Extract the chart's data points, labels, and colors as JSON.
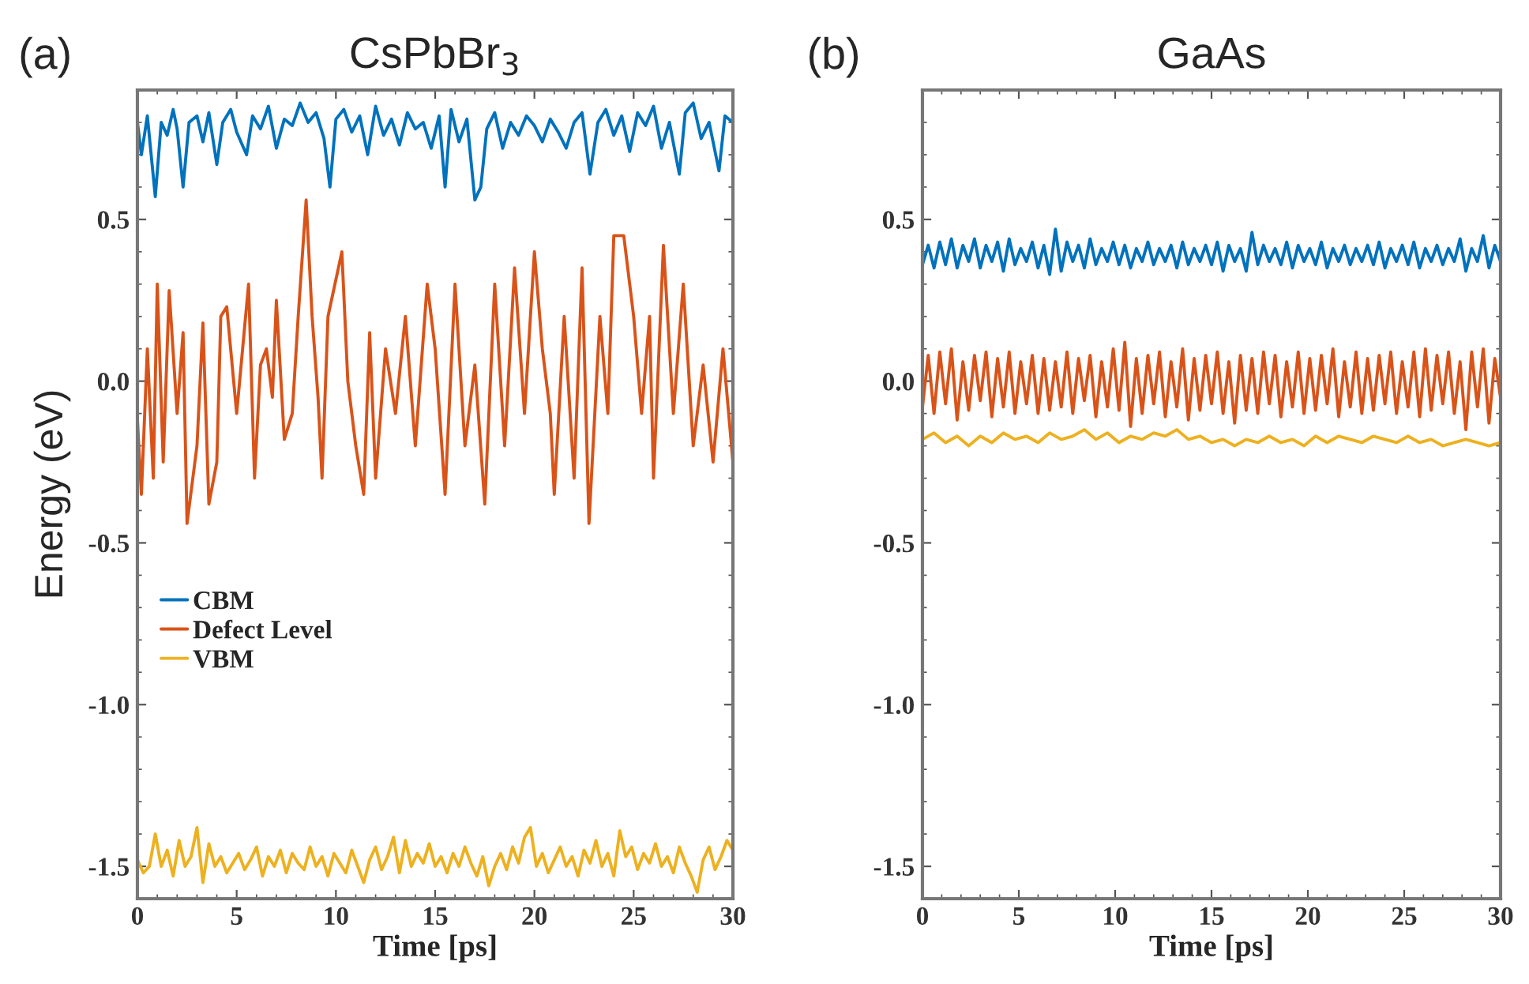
{
  "chart_data": [
    {
      "type": "line",
      "title": "CsPbBr$_{3}$",
      "xlabel": "Time [ps]",
      "ylabel": "Energy (eV)",
      "annotations": [
        "(a)"
      ],
      "xlim": [
        0,
        30
      ],
      "ylim": [
        -1.6,
        0.9
      ],
      "xticks": [
        0,
        5,
        10,
        15,
        20,
        25,
        30
      ],
      "yticks": [
        {
          "value": 0.5,
          "label": "0.5"
        },
        {
          "value": 0.0,
          "label": "0.0"
        },
        {
          "value": -0.5,
          "label": "-0.5"
        },
        {
          "value": -1.0,
          "label": "-1.0"
        },
        {
          "value": -1.5,
          "label": "-1.5"
        }
      ],
      "grid": false,
      "legend": "center left",
      "marker": "none",
      "line_style": "solid",
      "series": [
        {
          "name": "CBM",
          "color": "#0072bd",
          "x": [
            0,
            0.2,
            0.5,
            0.9,
            1.2,
            1.5,
            1.8,
            2.0,
            2.3,
            2.6,
            3.0,
            3.3,
            3.6,
            4.0,
            4.3,
            4.7,
            5.0,
            5.5,
            5.8,
            6.2,
            6.6,
            7.0,
            7.4,
            7.8,
            8.2,
            8.6,
            9.0,
            9.4,
            9.7,
            10.0,
            10.4,
            10.8,
            11.2,
            11.6,
            12.0,
            12.4,
            12.8,
            13.2,
            13.6,
            14.0,
            14.4,
            14.8,
            15.2,
            15.5,
            15.8,
            16.2,
            16.6,
            17.0,
            17.3,
            17.6,
            18.0,
            18.4,
            18.8,
            19.2,
            19.6,
            20.0,
            20.4,
            20.8,
            21.2,
            21.6,
            22.0,
            22.4,
            22.8,
            23.2,
            23.6,
            24.0,
            24.4,
            24.8,
            25.2,
            25.6,
            26.0,
            26.4,
            26.8,
            27.3,
            27.6,
            28.0,
            28.4,
            28.8,
            29.3,
            29.6,
            30.0
          ],
          "values": [
            0.8,
            0.7,
            0.82,
            0.57,
            0.8,
            0.76,
            0.84,
            0.78,
            0.6,
            0.8,
            0.82,
            0.74,
            0.83,
            0.67,
            0.8,
            0.84,
            0.77,
            0.7,
            0.82,
            0.78,
            0.85,
            0.72,
            0.81,
            0.79,
            0.86,
            0.8,
            0.83,
            0.75,
            0.6,
            0.81,
            0.84,
            0.77,
            0.82,
            0.7,
            0.85,
            0.76,
            0.81,
            0.73,
            0.83,
            0.78,
            0.8,
            0.72,
            0.82,
            0.6,
            0.84,
            0.74,
            0.81,
            0.56,
            0.6,
            0.78,
            0.83,
            0.72,
            0.8,
            0.76,
            0.82,
            0.79,
            0.74,
            0.81,
            0.77,
            0.72,
            0.8,
            0.83,
            0.64,
            0.8,
            0.84,
            0.76,
            0.82,
            0.71,
            0.83,
            0.79,
            0.85,
            0.72,
            0.8,
            0.64,
            0.83,
            0.86,
            0.75,
            0.8,
            0.65,
            0.82,
            0.8
          ]
        },
        {
          "name": "Defect Level",
          "color": "#d95319",
          "x": [
            0,
            0.2,
            0.5,
            0.8,
            1.0,
            1.3,
            1.6,
            2.0,
            2.3,
            2.5,
            3.0,
            3.3,
            3.6,
            4.0,
            4.2,
            4.5,
            5.0,
            5.6,
            5.9,
            6.2,
            6.5,
            6.8,
            7.0,
            7.4,
            7.8,
            8.1,
            8.5,
            8.8,
            9.1,
            9.3,
            9.6,
            10.3,
            10.6,
            11.0,
            11.4,
            11.7,
            12.0,
            12.5,
            13.0,
            13.5,
            14.0,
            14.6,
            15.0,
            15.5,
            16.0,
            16.5,
            17.0,
            17.5,
            18.0,
            18.5,
            19.0,
            19.5,
            20.0,
            20.4,
            20.8,
            21.0,
            21.5,
            22.0,
            22.4,
            22.75,
            23.3,
            23.7,
            24.0,
            24.5,
            25.0,
            25.4,
            25.8,
            26.0,
            26.5,
            27.0,
            27.5,
            28.0,
            28.5,
            29.0,
            29.5,
            30.0
          ],
          "values": [
            -0.12,
            -0.35,
            0.1,
            -0.3,
            0.3,
            -0.25,
            0.28,
            -0.1,
            0.15,
            -0.44,
            -0.2,
            0.18,
            -0.38,
            -0.25,
            0.2,
            0.23,
            -0.1,
            0.3,
            -0.3,
            0.05,
            0.1,
            -0.05,
            0.25,
            -0.18,
            -0.1,
            0.2,
            0.56,
            0.2,
            -0.05,
            -0.3,
            0.2,
            0.4,
            0.0,
            -0.2,
            -0.35,
            0.15,
            -0.3,
            0.1,
            -0.1,
            0.2,
            -0.2,
            0.3,
            0.1,
            -0.35,
            0.3,
            -0.2,
            0.05,
            -0.38,
            0.3,
            -0.2,
            0.35,
            -0.1,
            0.4,
            0.1,
            -0.1,
            -0.35,
            0.2,
            -0.3,
            0.35,
            -0.44,
            0.2,
            -0.1,
            0.45,
            0.45,
            0.2,
            -0.1,
            0.2,
            -0.3,
            0.42,
            -0.1,
            0.3,
            -0.2,
            0.05,
            -0.25,
            0.1,
            -0.25
          ]
        },
        {
          "name": "VBM",
          "color": "#edb120",
          "x": [
            0,
            0.3,
            0.6,
            0.9,
            1.2,
            1.5,
            1.8,
            2.1,
            2.4,
            2.7,
            3.0,
            3.3,
            3.6,
            3.9,
            4.2,
            4.5,
            4.8,
            5.1,
            5.4,
            5.7,
            6.0,
            6.3,
            6.6,
            6.9,
            7.2,
            7.5,
            7.8,
            8.1,
            8.4,
            8.7,
            9.0,
            9.3,
            9.6,
            9.9,
            10.2,
            10.5,
            10.8,
            11.1,
            11.4,
            11.7,
            12.0,
            12.3,
            12.6,
            12.9,
            13.2,
            13.5,
            13.8,
            14.1,
            14.4,
            14.7,
            15.0,
            15.3,
            15.6,
            15.9,
            16.2,
            16.5,
            16.8,
            17.1,
            17.4,
            17.7,
            18.0,
            18.3,
            18.6,
            18.9,
            19.2,
            19.5,
            19.8,
            20.1,
            20.4,
            20.7,
            21.0,
            21.3,
            21.6,
            21.9,
            22.2,
            22.5,
            22.8,
            23.1,
            23.4,
            23.7,
            24.0,
            24.3,
            24.6,
            24.9,
            25.2,
            25.5,
            25.8,
            26.1,
            26.4,
            26.7,
            27.0,
            27.3,
            27.6,
            27.9,
            28.2,
            28.5,
            28.8,
            29.1,
            29.4,
            29.7,
            30.0
          ],
          "values": [
            -1.48,
            -1.52,
            -1.5,
            -1.4,
            -1.5,
            -1.45,
            -1.53,
            -1.42,
            -1.5,
            -1.47,
            -1.38,
            -1.55,
            -1.43,
            -1.5,
            -1.47,
            -1.52,
            -1.49,
            -1.46,
            -1.51,
            -1.48,
            -1.44,
            -1.53,
            -1.47,
            -1.5,
            -1.45,
            -1.52,
            -1.46,
            -1.49,
            -1.51,
            -1.44,
            -1.5,
            -1.47,
            -1.53,
            -1.46,
            -1.49,
            -1.52,
            -1.45,
            -1.5,
            -1.55,
            -1.48,
            -1.44,
            -1.51,
            -1.47,
            -1.41,
            -1.52,
            -1.42,
            -1.5,
            -1.46,
            -1.49,
            -1.43,
            -1.5,
            -1.47,
            -1.52,
            -1.46,
            -1.5,
            -1.44,
            -1.49,
            -1.53,
            -1.47,
            -1.56,
            -1.5,
            -1.46,
            -1.51,
            -1.44,
            -1.49,
            -1.41,
            -1.38,
            -1.5,
            -1.46,
            -1.52,
            -1.48,
            -1.44,
            -1.5,
            -1.47,
            -1.53,
            -1.45,
            -1.49,
            -1.42,
            -1.5,
            -1.46,
            -1.53,
            -1.39,
            -1.47,
            -1.44,
            -1.51,
            -1.46,
            -1.49,
            -1.43,
            -1.5,
            -1.47,
            -1.52,
            -1.44,
            -1.49,
            -1.53,
            -1.58,
            -1.48,
            -1.44,
            -1.51,
            -1.47,
            -1.42,
            -1.45
          ]
        }
      ]
    },
    {
      "type": "line",
      "title": "GaAs",
      "xlabel": "Time [ps]",
      "annotations": [
        "(b)"
      ],
      "xlim": [
        0,
        30
      ],
      "ylim": [
        -1.6,
        0.9
      ],
      "xticks": [
        0,
        5,
        10,
        15,
        20,
        25,
        30
      ],
      "yticks": [
        {
          "value": 0.5,
          "label": "0.5"
        },
        {
          "value": 0.0,
          "label": "0.0"
        },
        {
          "value": -0.5,
          "label": "-0.5"
        },
        {
          "value": -1.0,
          "label": "-1.0"
        },
        {
          "value": -1.5,
          "label": "-1.5"
        }
      ],
      "grid": false,
      "marker": "none",
      "line_style": "solid",
      "series": [
        {
          "color": "#0072bd",
          "x": [
            0,
            0.3,
            0.6,
            0.9,
            1.2,
            1.5,
            1.8,
            2.1,
            2.4,
            2.7,
            3.0,
            3.3,
            3.6,
            3.9,
            4.2,
            4.5,
            4.8,
            5.1,
            5.4,
            5.7,
            6.0,
            6.3,
            6.6,
            6.9,
            7.2,
            7.5,
            7.8,
            8.1,
            8.4,
            8.7,
            9.0,
            9.3,
            9.6,
            9.9,
            10.2,
            10.5,
            10.8,
            11.1,
            11.4,
            11.7,
            12.0,
            12.3,
            12.6,
            12.9,
            13.2,
            13.5,
            13.8,
            14.1,
            14.4,
            14.7,
            15.0,
            15.3,
            15.6,
            15.9,
            16.2,
            16.5,
            16.8,
            17.1,
            17.4,
            17.7,
            18.0,
            18.3,
            18.6,
            18.9,
            19.2,
            19.5,
            19.8,
            20.1,
            20.4,
            20.7,
            21.0,
            21.3,
            21.6,
            21.9,
            22.2,
            22.5,
            22.8,
            23.1,
            23.4,
            23.7,
            24.0,
            24.3,
            24.6,
            24.9,
            25.2,
            25.5,
            25.8,
            26.1,
            26.4,
            26.7,
            27.0,
            27.3,
            27.6,
            27.9,
            28.2,
            28.5,
            28.8,
            29.1,
            29.4,
            29.7,
            30.0
          ],
          "values": [
            0.36,
            0.42,
            0.35,
            0.43,
            0.36,
            0.44,
            0.35,
            0.42,
            0.37,
            0.44,
            0.35,
            0.42,
            0.37,
            0.43,
            0.34,
            0.44,
            0.36,
            0.41,
            0.37,
            0.43,
            0.35,
            0.42,
            0.33,
            0.47,
            0.34,
            0.43,
            0.37,
            0.42,
            0.35,
            0.44,
            0.36,
            0.41,
            0.37,
            0.43,
            0.36,
            0.42,
            0.35,
            0.41,
            0.37,
            0.43,
            0.36,
            0.41,
            0.37,
            0.42,
            0.35,
            0.43,
            0.36,
            0.41,
            0.37,
            0.42,
            0.36,
            0.43,
            0.34,
            0.42,
            0.37,
            0.41,
            0.34,
            0.46,
            0.36,
            0.42,
            0.37,
            0.41,
            0.36,
            0.43,
            0.35,
            0.42,
            0.37,
            0.41,
            0.36,
            0.43,
            0.35,
            0.41,
            0.37,
            0.42,
            0.36,
            0.41,
            0.37,
            0.42,
            0.36,
            0.43,
            0.35,
            0.41,
            0.37,
            0.42,
            0.36,
            0.43,
            0.35,
            0.41,
            0.37,
            0.42,
            0.36,
            0.41,
            0.37,
            0.44,
            0.34,
            0.41,
            0.37,
            0.45,
            0.35,
            0.42,
            0.37
          ]
        },
        {
          "color": "#d95319",
          "x": [
            0,
            0.3,
            0.6,
            0.9,
            1.2,
            1.5,
            1.8,
            2.1,
            2.4,
            2.7,
            3.0,
            3.3,
            3.6,
            3.9,
            4.2,
            4.5,
            4.8,
            5.1,
            5.4,
            5.7,
            6.0,
            6.3,
            6.6,
            6.9,
            7.2,
            7.5,
            7.8,
            8.1,
            8.4,
            8.7,
            9.0,
            9.3,
            9.6,
            9.9,
            10.2,
            10.5,
            10.8,
            11.1,
            11.4,
            11.7,
            12.0,
            12.3,
            12.6,
            12.9,
            13.2,
            13.5,
            13.8,
            14.1,
            14.4,
            14.7,
            15.0,
            15.3,
            15.6,
            15.9,
            16.2,
            16.5,
            16.8,
            17.1,
            17.4,
            17.7,
            18.0,
            18.3,
            18.6,
            18.9,
            19.2,
            19.5,
            19.8,
            20.1,
            20.4,
            20.7,
            21.0,
            21.3,
            21.6,
            21.9,
            22.2,
            22.5,
            22.8,
            23.1,
            23.4,
            23.7,
            24.0,
            24.3,
            24.6,
            24.9,
            25.2,
            25.5,
            25.8,
            26.1,
            26.4,
            26.7,
            27.0,
            27.3,
            27.6,
            27.9,
            28.2,
            28.5,
            28.8,
            29.1,
            29.4,
            29.7,
            30.0
          ],
          "values": [
            -0.08,
            0.08,
            -0.1,
            0.09,
            -0.07,
            0.1,
            -0.12,
            0.06,
            -0.09,
            0.08,
            -0.06,
            0.09,
            -0.11,
            0.07,
            -0.08,
            0.09,
            -0.1,
            0.06,
            -0.07,
            0.08,
            -0.1,
            0.07,
            -0.09,
            0.06,
            -0.08,
            0.09,
            -0.1,
            0.07,
            -0.06,
            0.08,
            -0.11,
            0.06,
            -0.08,
            0.1,
            -0.09,
            0.12,
            -0.14,
            0.07,
            -0.1,
            0.08,
            -0.07,
            0.09,
            -0.11,
            0.06,
            -0.08,
            0.1,
            -0.12,
            0.07,
            -0.09,
            0.08,
            -0.07,
            0.09,
            -0.1,
            0.06,
            -0.13,
            0.08,
            -0.09,
            0.07,
            -0.1,
            0.09,
            -0.07,
            0.08,
            -0.11,
            0.06,
            -0.08,
            0.09,
            -0.1,
            0.07,
            -0.09,
            0.08,
            -0.07,
            0.1,
            -0.11,
            0.06,
            -0.08,
            0.09,
            -0.1,
            0.07,
            -0.09,
            0.08,
            -0.07,
            0.09,
            -0.1,
            0.06,
            -0.08,
            0.09,
            -0.11,
            0.1,
            -0.09,
            0.08,
            -0.07,
            0.09,
            -0.1,
            0.06,
            -0.15,
            0.09,
            -0.08,
            0.1,
            -0.13,
            0.07,
            -0.05
          ]
        },
        {
          "color": "#edb120",
          "x": [
            0,
            0.6,
            1.2,
            1.8,
            2.4,
            3.0,
            3.6,
            4.2,
            4.8,
            5.4,
            6.0,
            6.6,
            7.2,
            7.8,
            8.4,
            9.0,
            9.6,
            10.2,
            10.8,
            11.4,
            12.0,
            12.6,
            13.2,
            13.8,
            14.4,
            15.0,
            15.6,
            16.2,
            16.8,
            17.4,
            18.0,
            18.6,
            19.2,
            19.8,
            20.4,
            21.0,
            21.6,
            22.2,
            22.8,
            23.4,
            24.0,
            24.6,
            25.2,
            25.8,
            26.4,
            27.0,
            27.6,
            28.2,
            28.8,
            29.4,
            30.0
          ],
          "values": [
            -0.18,
            -0.16,
            -0.19,
            -0.17,
            -0.2,
            -0.17,
            -0.19,
            -0.16,
            -0.18,
            -0.17,
            -0.19,
            -0.16,
            -0.18,
            -0.17,
            -0.15,
            -0.18,
            -0.16,
            -0.19,
            -0.17,
            -0.18,
            -0.16,
            -0.17,
            -0.15,
            -0.18,
            -0.17,
            -0.19,
            -0.18,
            -0.2,
            -0.18,
            -0.19,
            -0.17,
            -0.19,
            -0.18,
            -0.2,
            -0.17,
            -0.19,
            -0.17,
            -0.18,
            -0.19,
            -0.17,
            -0.18,
            -0.19,
            -0.17,
            -0.19,
            -0.18,
            -0.2,
            -0.19,
            -0.18,
            -0.19,
            -0.2,
            -0.19
          ]
        }
      ]
    }
  ]
}
